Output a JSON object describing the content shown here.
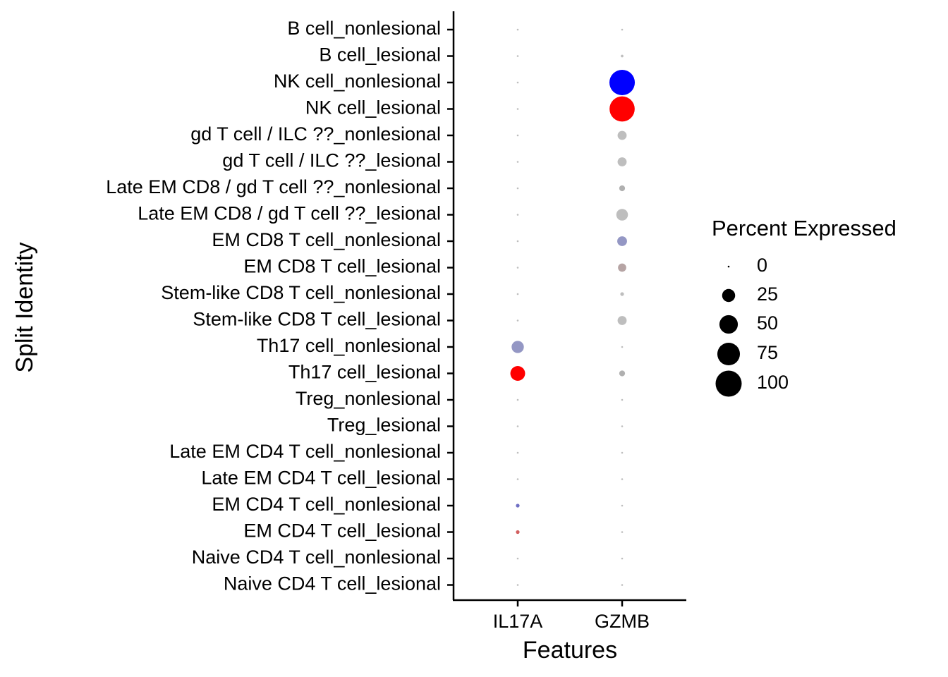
{
  "chart_data": {
    "type": "scatter",
    "subtype": "dot plot",
    "xlabel": "Features",
    "ylabel": "Split Identity",
    "features": [
      "IL17A",
      "GZMB"
    ],
    "identities": [
      "B cell_nonlesional",
      "B cell_lesional",
      "NK cell_nonlesional",
      "NK cell_lesional",
      "gd T cell / ILC ??_nonlesional",
      "gd T cell / ILC ??_lesional",
      "Late EM CD8 / gd T cell ??_nonlesional",
      "Late EM CD8 / gd T cell ??_lesional",
      "EM CD8 T cell_nonlesional",
      "EM CD8 T cell_lesional",
      "Stem-like CD8 T cell_nonlesional",
      "Stem-like CD8 T cell_lesional",
      "Th17 cell_nonlesional",
      "Th17 cell_lesional",
      "Treg_nonlesional",
      "Treg_lesional",
      "Late EM CD4 T cell_nonlesional",
      "Late EM CD4 T cell_lesional",
      "EM CD4 T cell_nonlesional",
      "EM CD4 T cell_lesional",
      "Naive CD4 T cell_nonlesional",
      "Naive CD4 T cell_lesional"
    ],
    "points": [
      {
        "feature": "IL17A",
        "identity": "B cell_nonlesional",
        "pct": 0,
        "color": "#bebebe"
      },
      {
        "feature": "IL17A",
        "identity": "B cell_lesional",
        "pct": 0,
        "color": "#bebebe"
      },
      {
        "feature": "IL17A",
        "identity": "NK cell_nonlesional",
        "pct": 0,
        "color": "#bebebe"
      },
      {
        "feature": "IL17A",
        "identity": "NK cell_lesional",
        "pct": 0,
        "color": "#bebebe"
      },
      {
        "feature": "IL17A",
        "identity": "gd T cell / ILC ??_nonlesional",
        "pct": 0,
        "color": "#bebebe"
      },
      {
        "feature": "IL17A",
        "identity": "gd T cell / ILC ??_lesional",
        "pct": 0,
        "color": "#bebebe"
      },
      {
        "feature": "IL17A",
        "identity": "Late EM CD8 / gd T cell ??_nonlesional",
        "pct": 0,
        "color": "#bebebe"
      },
      {
        "feature": "IL17A",
        "identity": "Late EM CD8 / gd T cell ??_lesional",
        "pct": 0,
        "color": "#bebebe"
      },
      {
        "feature": "IL17A",
        "identity": "EM CD8 T cell_nonlesional",
        "pct": 0,
        "color": "#bebebe"
      },
      {
        "feature": "IL17A",
        "identity": "EM CD8 T cell_lesional",
        "pct": 0,
        "color": "#bebebe"
      },
      {
        "feature": "IL17A",
        "identity": "Stem-like CD8 T cell_nonlesional",
        "pct": 0,
        "color": "#bebebe"
      },
      {
        "feature": "IL17A",
        "identity": "Stem-like CD8 T cell_lesional",
        "pct": 0,
        "color": "#bebebe"
      },
      {
        "feature": "IL17A",
        "identity": "Th17 cell_nonlesional",
        "pct": 22,
        "color": "#9497c4"
      },
      {
        "feature": "IL17A",
        "identity": "Th17 cell_lesional",
        "pct": 32,
        "color": "#ff0000"
      },
      {
        "feature": "IL17A",
        "identity": "Treg_nonlesional",
        "pct": 0,
        "color": "#bebebe"
      },
      {
        "feature": "IL17A",
        "identity": "Treg_lesional",
        "pct": 0,
        "color": "#bebebe"
      },
      {
        "feature": "IL17A",
        "identity": "Late EM CD4 T cell_nonlesional",
        "pct": 0,
        "color": "#bebebe"
      },
      {
        "feature": "IL17A",
        "identity": "Late EM CD4 T cell_lesional",
        "pct": 0,
        "color": "#bebebe"
      },
      {
        "feature": "IL17A",
        "identity": "EM CD4 T cell_nonlesional",
        "pct": 2,
        "color": "#6f6fc4"
      },
      {
        "feature": "IL17A",
        "identity": "EM CD4 T cell_lesional",
        "pct": 2,
        "color": "#d25f5f"
      },
      {
        "feature": "IL17A",
        "identity": "Naive CD4 T cell_nonlesional",
        "pct": 0,
        "color": "#bebebe"
      },
      {
        "feature": "IL17A",
        "identity": "Naive CD4 T cell_lesional",
        "pct": 0,
        "color": "#bebebe"
      },
      {
        "feature": "GZMB",
        "identity": "B cell_nonlesional",
        "pct": 0.5,
        "color": "#bebebe"
      },
      {
        "feature": "GZMB",
        "identity": "B cell_lesional",
        "pct": 1,
        "color": "#bebebe"
      },
      {
        "feature": "GZMB",
        "identity": "NK cell_nonlesional",
        "pct": 95,
        "color": "#0000ff"
      },
      {
        "feature": "GZMB",
        "identity": "NK cell_lesional",
        "pct": 93,
        "color": "#ff0000"
      },
      {
        "feature": "GZMB",
        "identity": "gd T cell / ILC ??_nonlesional",
        "pct": 12,
        "color": "#bebebe"
      },
      {
        "feature": "GZMB",
        "identity": "gd T cell / ILC ??_lesional",
        "pct": 12,
        "color": "#bebebe"
      },
      {
        "feature": "GZMB",
        "identity": "Late EM CD8 / gd T cell ??_nonlesional",
        "pct": 5,
        "color": "#b0b0b0"
      },
      {
        "feature": "GZMB",
        "identity": "Late EM CD8 / gd T cell ??_lesional",
        "pct": 20,
        "color": "#bebebe"
      },
      {
        "feature": "GZMB",
        "identity": "EM CD8 T cell_nonlesional",
        "pct": 14,
        "color": "#9497c4"
      },
      {
        "feature": "GZMB",
        "identity": "EM CD8 T cell_lesional",
        "pct": 10,
        "color": "#b6a4a4"
      },
      {
        "feature": "GZMB",
        "identity": "Stem-like CD8 T cell_nonlesional",
        "pct": 2,
        "color": "#bebebe"
      },
      {
        "feature": "GZMB",
        "identity": "Stem-like CD8 T cell_lesional",
        "pct": 12,
        "color": "#bebebe"
      },
      {
        "feature": "GZMB",
        "identity": "Th17 cell_nonlesional",
        "pct": 0.5,
        "color": "#bebebe"
      },
      {
        "feature": "GZMB",
        "identity": "Th17 cell_lesional",
        "pct": 5,
        "color": "#b0b0b0"
      },
      {
        "feature": "GZMB",
        "identity": "Treg_nonlesional",
        "pct": 0.5,
        "color": "#bebebe"
      },
      {
        "feature": "GZMB",
        "identity": "Treg_lesional",
        "pct": 0.5,
        "color": "#bebebe"
      },
      {
        "feature": "GZMB",
        "identity": "Late EM CD4 T cell_nonlesional",
        "pct": 0.5,
        "color": "#bebebe"
      },
      {
        "feature": "GZMB",
        "identity": "Late EM CD4 T cell_lesional",
        "pct": 0.5,
        "color": "#bebebe"
      },
      {
        "feature": "GZMB",
        "identity": "EM CD4 T cell_nonlesional",
        "pct": 0.5,
        "color": "#bebebe"
      },
      {
        "feature": "GZMB",
        "identity": "EM CD4 T cell_lesional",
        "pct": 0.5,
        "color": "#bebebe"
      },
      {
        "feature": "GZMB",
        "identity": "Naive CD4 T cell_nonlesional",
        "pct": 0.5,
        "color": "#bebebe"
      },
      {
        "feature": "GZMB",
        "identity": "Naive CD4 T cell_lesional",
        "pct": 0.5,
        "color": "#bebebe"
      }
    ],
    "legend": {
      "title": "Percent Expressed",
      "placement": "right",
      "entries": [
        0,
        25,
        50,
        75,
        100
      ]
    },
    "grid": false
  }
}
